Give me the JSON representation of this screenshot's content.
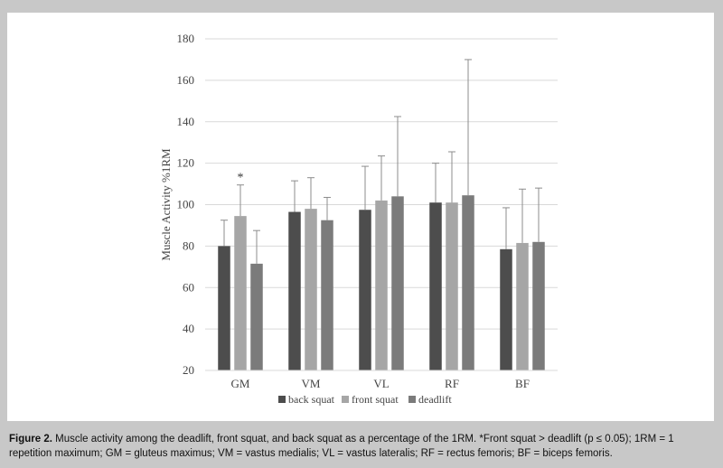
{
  "caption": {
    "label": "Figure 2.",
    "text": " Muscle activity among the deadlift, front squat, and back squat as a percentage of the 1RM. *Front squat > deadlift (p ≤ 0.05); 1RM = 1 repetition maximum; GM = gluteus maximus; VM = vastus medialis; VL = vastus lateralis; RF = rectus femoris; BF = biceps femoris."
  },
  "colors": {
    "back_squat": "#4d4d4d",
    "front_squat": "#a6a6a6",
    "deadlift": "#7b7b7b",
    "gridline": "#d9d9d9",
    "error_bar": "#8c8c8c"
  },
  "chart_data": {
    "type": "bar",
    "title": "",
    "xlabel": "",
    "ylabel": "Muscle Activity %1RM",
    "ylim": [
      20,
      180
    ],
    "yticks": [
      20,
      40,
      60,
      80,
      100,
      120,
      140,
      160,
      180
    ],
    "grid": true,
    "legend_position": "bottom",
    "categories": [
      "GM",
      "VM",
      "VL",
      "RF",
      "BF"
    ],
    "series": [
      {
        "name": "back squat",
        "values": [
          80,
          96.5,
          97.5,
          101,
          78.5
        ],
        "errors": [
          12.5,
          15,
          21,
          19,
          20
        ]
      },
      {
        "name": "front squat",
        "values": [
          94.5,
          98,
          102,
          101,
          81.5
        ],
        "errors": [
          15,
          15,
          21.5,
          24.5,
          26
        ]
      },
      {
        "name": "deadlift",
        "values": [
          71.5,
          92.5,
          104,
          104.5,
          82
        ],
        "errors": [
          16,
          11,
          38.5,
          65.5,
          26
        ]
      }
    ],
    "annotations": [
      {
        "category": "GM",
        "series": "front squat",
        "text": "*"
      }
    ]
  }
}
